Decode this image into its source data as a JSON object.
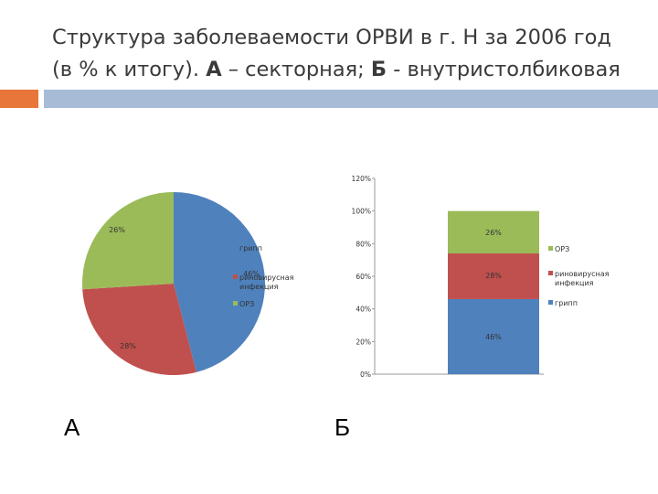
{
  "title": {
    "line1": "Структура заболеваемости ОРВИ в г. Н за 2006 год",
    "line2_pre": "(в % к итогу). ",
    "line2_a": "А",
    "line2_mid": " – секторная; ",
    "line2_b": "Б",
    "line2_post": " - внутристолбиковая"
  },
  "labels": {
    "a": "А",
    "b": "Б"
  },
  "colors": {
    "flu": "#4f81bd",
    "rhino": "#c0504d",
    "ore": "#9bbb59"
  },
  "chart_data": [
    {
      "type": "pie",
      "categories": [
        "грипп",
        "риновирусная инфекция",
        "ОРЗ"
      ],
      "values": [
        46,
        28,
        26
      ],
      "data_labels": [
        "46%",
        "28%",
        "26%"
      ],
      "legend": "right",
      "legend_entries": [
        {
          "line1": "грипп",
          "line2": ""
        },
        {
          "line1": "риновирусная",
          "line2": "инфекция"
        },
        {
          "line1": "ОРЗ",
          "line2": ""
        }
      ]
    },
    {
      "type": "bar",
      "stacked": true,
      "categories": [
        ""
      ],
      "series": [
        {
          "name": "грипп",
          "values": [
            46
          ],
          "label": "46%"
        },
        {
          "name": "риновирусная инфекция",
          "values": [
            28
          ],
          "label": "28%"
        },
        {
          "name": "ОРЗ",
          "values": [
            26
          ],
          "label": "26%"
        }
      ],
      "ylim": [
        0,
        120
      ],
      "yticks": [
        "0%",
        "20%",
        "40%",
        "60%",
        "80%",
        "100%",
        "120%"
      ],
      "legend": "right",
      "legend_entries": [
        {
          "line1": "ОРЗ",
          "line2": ""
        },
        {
          "line1": "риновирусная",
          "line2": "инфекция"
        },
        {
          "line1": "грипп",
          "line2": ""
        }
      ]
    }
  ]
}
